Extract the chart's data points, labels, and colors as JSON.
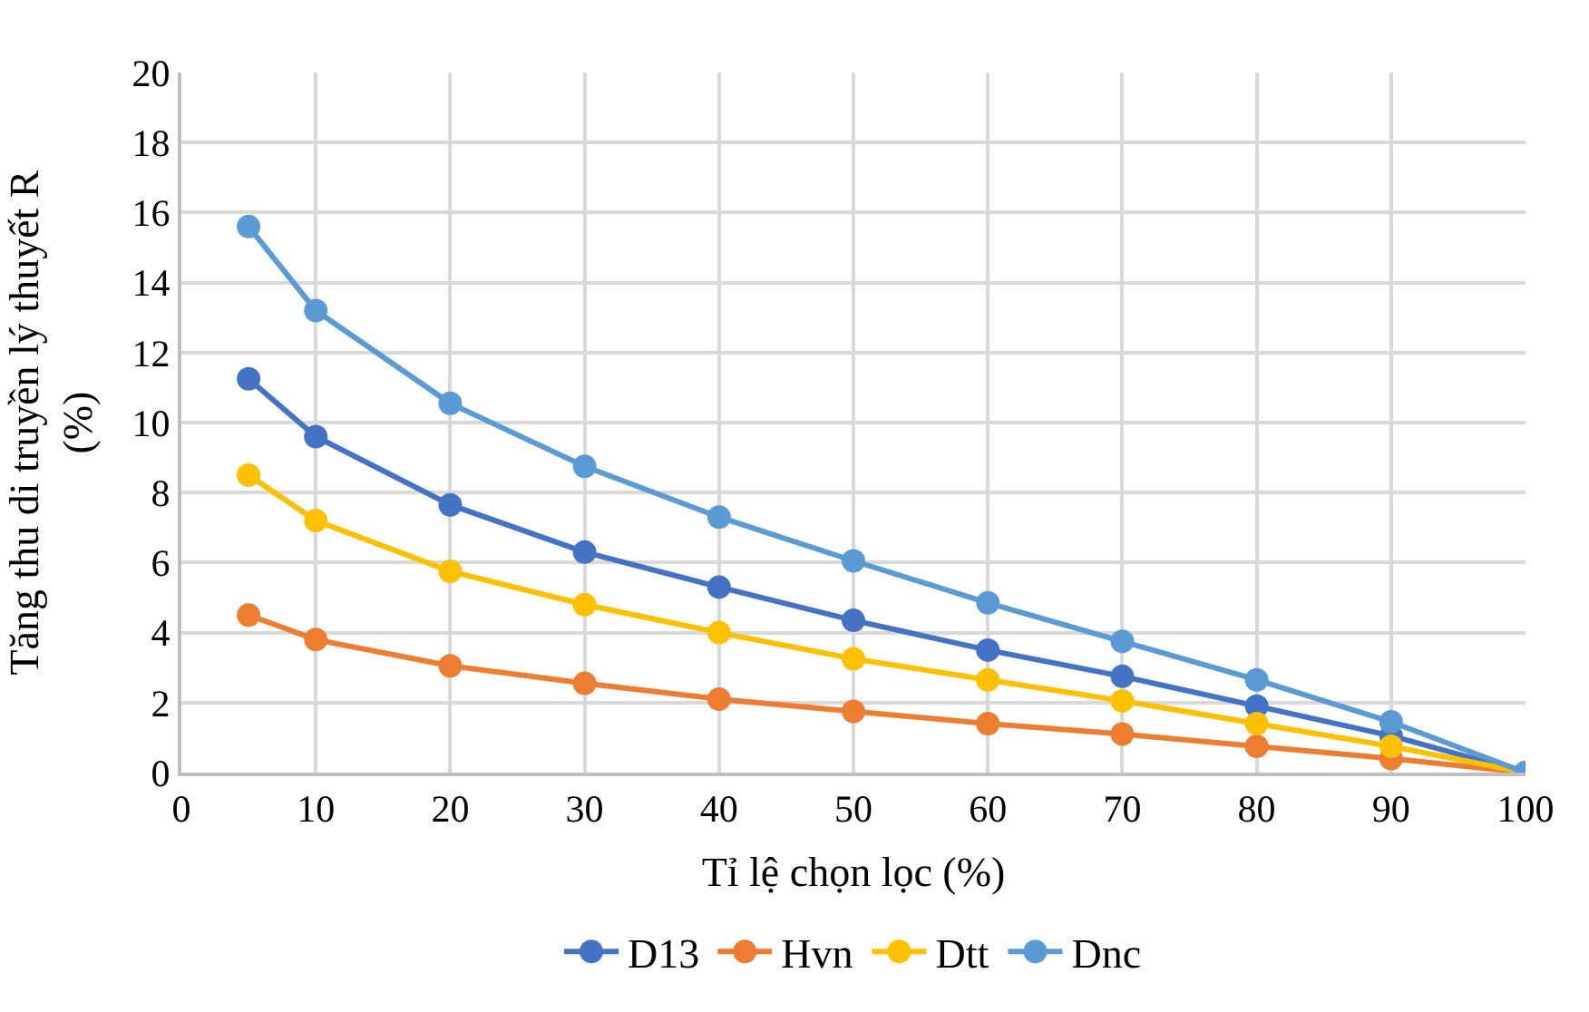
{
  "chart_data": {
    "type": "line",
    "xlabel": "Tỉ lệ chọn lọc (%)",
    "ylabel": "Tăng thu di truyền lý thuyết R\n(%)",
    "x": [
      5,
      10,
      20,
      30,
      40,
      50,
      60,
      70,
      80,
      90,
      100
    ],
    "series": [
      {
        "name": "D13",
        "color": "#4472c4",
        "values": [
          11.25,
          9.6,
          7.65,
          6.3,
          5.3,
          4.35,
          3.5,
          2.75,
          1.9,
          1.05,
          0
        ]
      },
      {
        "name": "Hvn",
        "color": "#ed7d31",
        "values": [
          4.5,
          3.8,
          3.05,
          2.55,
          2.1,
          1.75,
          1.4,
          1.1,
          0.75,
          0.4,
          0
        ]
      },
      {
        "name": "Dtt",
        "color": "#ffc000",
        "values": [
          8.5,
          7.2,
          5.75,
          4.8,
          4.0,
          3.25,
          2.65,
          2.05,
          1.4,
          0.75,
          0
        ]
      },
      {
        "name": "Dnc",
        "color": "#5b9bd5",
        "values": [
          15.6,
          13.2,
          10.55,
          8.75,
          7.3,
          6.05,
          4.85,
          3.75,
          2.65,
          1.45,
          0
        ]
      }
    ],
    "xlim": [
      0,
      100
    ],
    "xticks": [
      0,
      10,
      20,
      30,
      40,
      50,
      60,
      70,
      80,
      90,
      100
    ],
    "ylim": [
      0,
      20
    ],
    "yticks": [
      0,
      2,
      4,
      6,
      8,
      10,
      12,
      14,
      16,
      18,
      20
    ],
    "grid": true,
    "legend": "bottom",
    "marker": "circle",
    "line_style": "solid"
  }
}
